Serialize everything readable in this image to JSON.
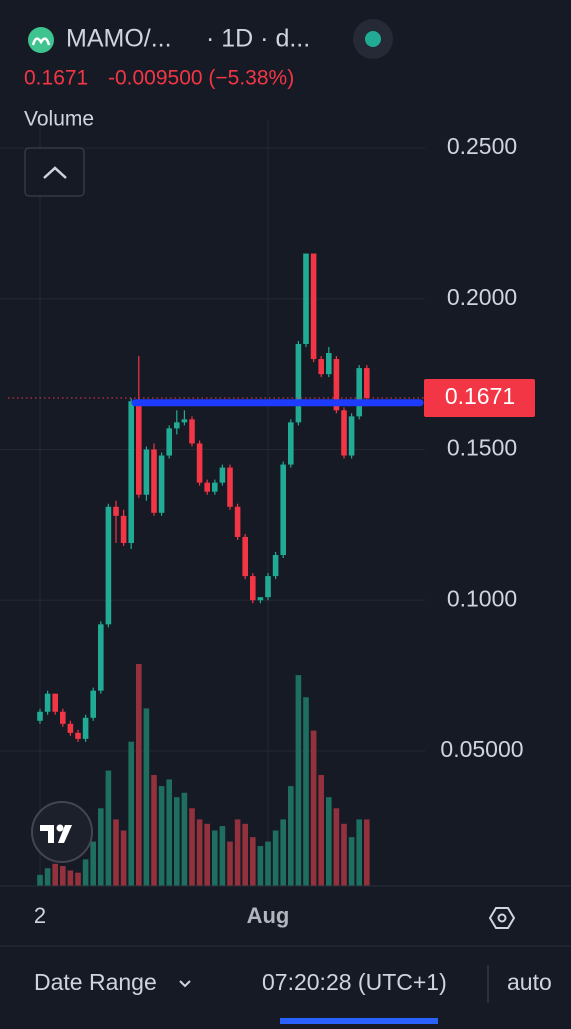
{
  "header": {
    "symbol": "MAMO/...",
    "interval": "· 1D · d...",
    "price": "0.1671",
    "change": "-0.009500 (−5.38%)"
  },
  "chart_data": {
    "type": "candlestick",
    "volume_label": "Volume",
    "categories": [
      "2",
      null,
      null,
      null,
      null,
      null,
      null,
      null,
      null,
      null,
      null,
      null,
      null,
      null,
      null,
      null,
      null,
      null,
      null,
      null,
      null,
      null,
      null,
      null,
      null,
      null,
      null,
      null,
      null,
      null,
      "Aug",
      null,
      null,
      null,
      null,
      null,
      null,
      null,
      null,
      null,
      null,
      null,
      null,
      null
    ],
    "open": [
      0.06,
      0.063,
      0.069,
      0.063,
      0.059,
      0.056,
      0.054,
      0.061,
      0.07,
      0.092,
      0.131,
      0.128,
      0.119,
      0.166,
      0.135,
      0.15,
      0.129,
      0.148,
      0.157,
      0.159,
      0.16,
      0.152,
      0.139,
      0.136,
      0.139,
      0.144,
      0.131,
      0.121,
      0.108,
      0.1,
      0.101,
      0.108,
      0.115,
      0.145,
      0.159,
      0.185,
      0.215,
      0.18,
      0.175,
      0.18,
      0.163,
      0.148,
      0.161,
      0.177
    ],
    "high": [
      0.064,
      0.07,
      0.069,
      0.064,
      0.06,
      0.057,
      0.062,
      0.071,
      0.093,
      0.132,
      0.133,
      0.13,
      0.167,
      0.181,
      0.151,
      0.152,
      0.149,
      0.158,
      0.163,
      0.163,
      0.161,
      0.153,
      0.14,
      0.14,
      0.145,
      0.145,
      0.132,
      0.122,
      0.109,
      0.101,
      0.109,
      0.116,
      0.146,
      0.16,
      0.186,
      0.215,
      0.215,
      0.181,
      0.184,
      0.181,
      0.164,
      0.162,
      0.178,
      0.178
    ],
    "low": [
      0.059,
      0.062,
      0.062,
      0.058,
      0.055,
      0.053,
      0.053,
      0.06,
      0.069,
      0.091,
      0.119,
      0.118,
      0.117,
      0.134,
      0.133,
      0.128,
      0.128,
      0.147,
      0.155,
      0.158,
      0.151,
      0.138,
      0.135,
      0.135,
      0.138,
      0.13,
      0.12,
      0.107,
      0.099,
      0.099,
      0.1,
      0.107,
      0.114,
      0.144,
      0.158,
      0.184,
      0.179,
      0.174,
      0.174,
      0.162,
      0.147,
      0.147,
      0.16,
      0.166
    ],
    "close": [
      0.063,
      0.069,
      0.063,
      0.059,
      0.056,
      0.054,
      0.061,
      0.07,
      0.092,
      0.131,
      0.128,
      0.119,
      0.166,
      0.135,
      0.15,
      0.129,
      0.148,
      0.157,
      0.159,
      0.16,
      0.152,
      0.139,
      0.136,
      0.139,
      0.144,
      0.131,
      0.121,
      0.108,
      0.1,
      0.101,
      0.108,
      0.115,
      0.145,
      0.159,
      0.185,
      0.215,
      0.18,
      0.175,
      0.182,
      0.163,
      0.148,
      0.161,
      0.177,
      0.1671
    ],
    "volume": [
      5,
      8,
      10,
      9,
      7,
      6,
      12,
      20,
      35,
      52,
      30,
      25,
      65,
      100,
      80,
      50,
      45,
      48,
      40,
      42,
      35,
      30,
      28,
      25,
      27,
      20,
      30,
      28,
      22,
      18,
      20,
      25,
      30,
      45,
      95,
      85,
      70,
      50,
      40,
      35,
      28,
      22,
      30,
      30
    ],
    "volume_lim": [
      0,
      100
    ],
    "up_color": "#22ab94",
    "down_color": "#f23645",
    "up_volume_color": "#1e6f60",
    "down_volume_color": "#93323c",
    "ylim": [
      0.0052,
      0.2593
    ],
    "yticks": [
      {
        "value": 0.05,
        "label": "0.05000"
      },
      {
        "value": 0.1,
        "label": "0.1000"
      },
      {
        "value": 0.15,
        "label": "0.1500"
      },
      {
        "value": 0.2,
        "label": "0.2000"
      },
      {
        "value": 0.25,
        "label": "0.2500"
      }
    ],
    "grid": true,
    "last_price": {
      "value": 0.1671,
      "label": "0.1671"
    },
    "drawn_line": {
      "value": 0.1655,
      "color": "#1e3cff"
    }
  },
  "footer": {
    "date_range": "Date Range",
    "time": "07:20:28 (UTC+1)",
    "scale": "auto"
  }
}
